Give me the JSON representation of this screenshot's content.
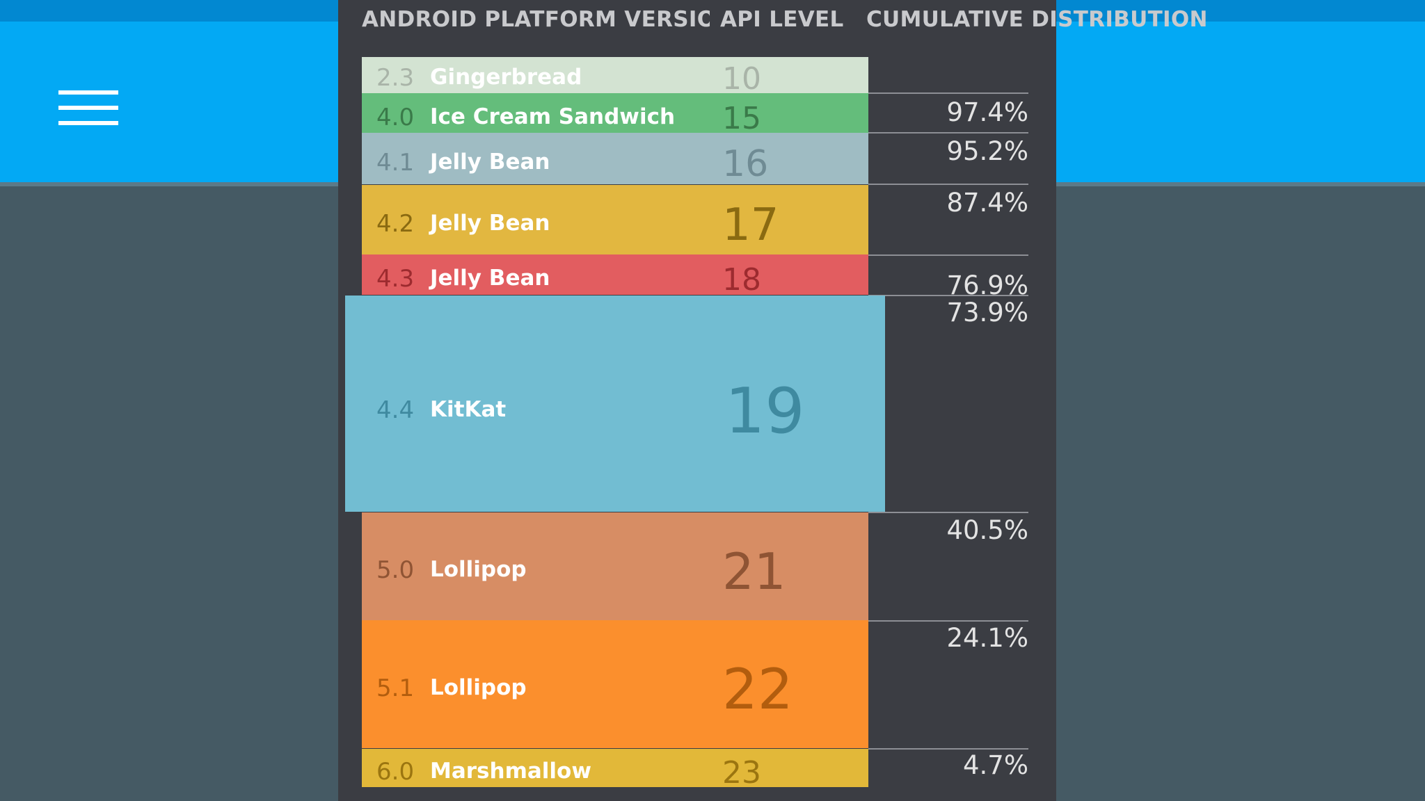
{
  "header": {
    "version_label": "ANDROID PLATFORM VERSION",
    "api_label": "API LEVEL",
    "cumulative_label": "CUMULATIVE DISTRIBUTION"
  },
  "icons": {
    "menu": "hamburger-menu-icon"
  },
  "colors": {
    "app_bar": "#03a9f4",
    "background": "#455a64",
    "panel": "#3b3d43"
  },
  "chart_data": {
    "type": "table",
    "columns": [
      "ANDROID PLATFORM VERSION",
      "API LEVEL",
      "CUMULATIVE DISTRIBUTION"
    ],
    "rows": [
      {
        "version": "2.3",
        "name": "Gingerbread",
        "api": "10",
        "cumulative": "",
        "color": "#d3e3d2"
      },
      {
        "version": "4.0",
        "name": "Ice Cream Sandwich",
        "api": "15",
        "cumulative": "97.4%",
        "color": "#64bd7b"
      },
      {
        "version": "4.1",
        "name": "Jelly Bean",
        "api": "16",
        "cumulative": "95.2%",
        "color": "#9fbcc3"
      },
      {
        "version": "4.2",
        "name": "Jelly Bean",
        "api": "17",
        "cumulative": "87.4%",
        "color": "#e2b740"
      },
      {
        "version": "4.3",
        "name": "Jelly Bean",
        "api": "18",
        "cumulative": "76.9%",
        "color": "#e25d60"
      },
      {
        "version": "4.4",
        "name": "KitKat",
        "api": "19",
        "cumulative": "73.9%",
        "color": "#72bdd2"
      },
      {
        "version": "5.0",
        "name": "Lollipop",
        "api": "21",
        "cumulative": "40.5%",
        "color": "#d78d64"
      },
      {
        "version": "5.1",
        "name": "Lollipop",
        "api": "22",
        "cumulative": "24.1%",
        "color": "#fb8f2d"
      },
      {
        "version": "6.0",
        "name": "Marshmallow",
        "api": "23",
        "cumulative": "4.7%",
        "color": "#e2b839"
      }
    ]
  }
}
